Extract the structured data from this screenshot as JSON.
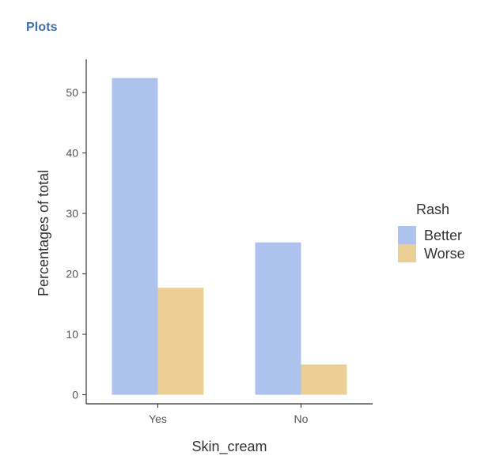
{
  "header": {
    "title": "Plots"
  },
  "chart_data": {
    "type": "bar",
    "categories": [
      "Yes",
      "No"
    ],
    "series": [
      {
        "name": "Better",
        "color": "#aec2ee",
        "values": [
          52.4,
          25.2
        ]
      },
      {
        "name": "Worse",
        "color": "#ebcf95",
        "values": [
          17.7,
          5.0
        ]
      }
    ],
    "xlabel": "Skin_cream",
    "ylabel": "Percentages of total",
    "yticks": [
      0,
      10,
      20,
      30,
      40,
      50
    ],
    "ylim": [
      -1.5,
      55.5
    ],
    "legend": {
      "title": "Rash",
      "position": "right"
    },
    "grid": false
  }
}
